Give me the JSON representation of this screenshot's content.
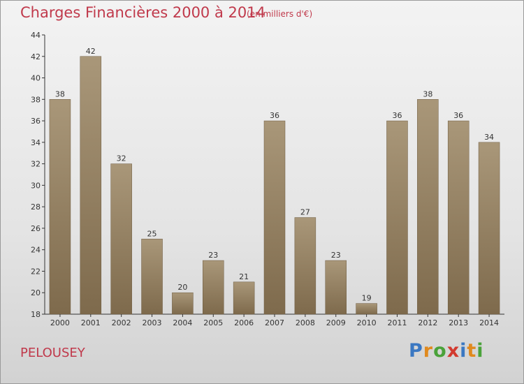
{
  "title": "Charges Financières 2000 à 2014",
  "subtitle": "(en milliers d'€)",
  "commune": "PELOUSEY",
  "brand": {
    "letters": [
      "P",
      "r",
      "o",
      "x",
      "i",
      "t",
      "i"
    ],
    "colors": [
      "#3b78c2",
      "#e08a1e",
      "#4aa23a",
      "#d23a2f",
      "#3b78c2",
      "#e08a1e",
      "#4aa23a"
    ]
  },
  "colors": {
    "bar_top": "#a99779",
    "bar_bottom": "#7e6a4c",
    "text_red": "#c0394b",
    "axis": "#333333"
  },
  "chart_data": {
    "type": "bar",
    "categories": [
      "2000",
      "2001",
      "2002",
      "2003",
      "2004",
      "2005",
      "2006",
      "2007",
      "2008",
      "2009",
      "2010",
      "2011",
      "2012",
      "2013",
      "2014"
    ],
    "values": [
      38,
      42,
      32,
      25,
      20,
      23,
      21,
      36,
      27,
      23,
      19,
      36,
      38,
      36,
      34
    ],
    "ylim": [
      18,
      44
    ],
    "yticks": [
      18,
      20,
      22,
      24,
      26,
      28,
      30,
      32,
      34,
      36,
      38,
      40,
      42,
      44
    ],
    "grid": false
  }
}
